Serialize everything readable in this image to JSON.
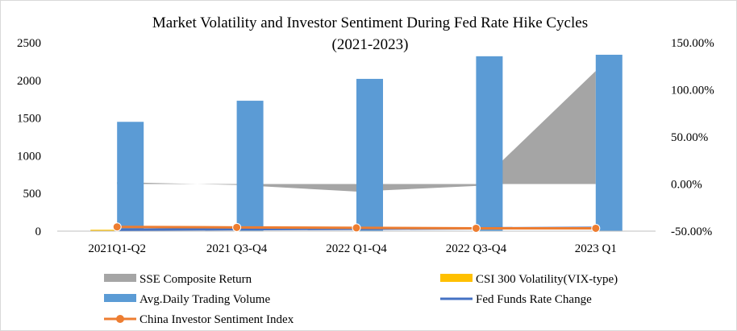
{
  "chart_data": {
    "type": "bar",
    "title": "Market Volatility and Investor Sentiment During Fed Rate Hike Cycles",
    "subtitle": "(2021-2023)",
    "categories": [
      "2021Q1-Q2",
      "2021 Q3-Q4",
      "2022 Q1-Q4",
      "2022 Q3-Q4",
      "2023 Q1"
    ],
    "left_axis": {
      "ylim": [
        0,
        2500
      ],
      "ticks": [
        "0",
        "500",
        "1000",
        "1500",
        "2000",
        "2500"
      ]
    },
    "right_axis": {
      "ylim": [
        -0.5,
        1.5
      ],
      "ticks": [
        "-50.00%",
        "0.00%",
        "50.00%",
        "100.00%",
        "150.00%"
      ]
    },
    "series": [
      {
        "name": "SSE Composite Return",
        "type": "area",
        "axis": "right",
        "color": "#a5a5a5",
        "values": [
          0.02,
          -0.01,
          -0.08,
          -0.02,
          1.2
        ]
      },
      {
        "name": "CSI 300 Volatility(VIX-type)",
        "type": "bar",
        "axis": "left",
        "color": "#ffc000",
        "values": [
          18,
          0,
          0,
          0,
          0
        ]
      },
      {
        "name": "Avg.Daily Trading Volume",
        "type": "bar",
        "axis": "left",
        "color": "#5b9bd5",
        "values": [
          1450,
          1730,
          2020,
          2320,
          2340
        ]
      },
      {
        "name": "Fed Funds Rate Change",
        "type": "line",
        "axis": "right",
        "color": "#4472c4",
        "values": [
          -0.485,
          -0.48,
          -0.475,
          -0.47,
          -0.465
        ]
      },
      {
        "name": "China Investor Sentiment Index",
        "type": "line",
        "axis": "right",
        "color": "#ed7d31",
        "values": [
          -0.455,
          -0.46,
          -0.465,
          -0.47,
          -0.47
        ]
      }
    ],
    "legend": {
      "position": "bottom"
    }
  }
}
